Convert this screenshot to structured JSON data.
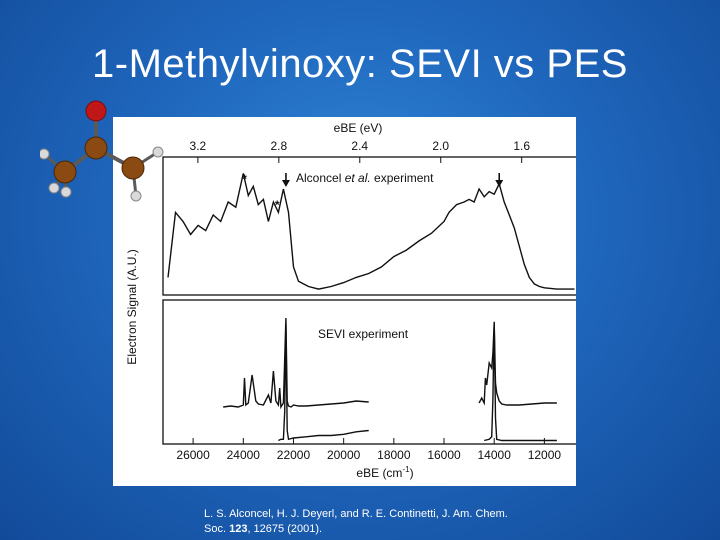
{
  "slide": {
    "title": "1-Methylvinoxy: SEVI vs PES",
    "citation_line1": "L. S. Alconcel, H. J. Deyerl, and R. E. Continetti, J. Am. Chem.",
    "citation_line2_pre": "Soc. ",
    "citation_line2_bold": "123",
    "citation_line2_post": ", 12675 (2001)."
  },
  "colors": {
    "background": "#1f67bd",
    "title": "#ffffff",
    "trace": "#111111"
  },
  "chart_data": {
    "type": "line",
    "top_axis": {
      "label": "eBE (eV)",
      "ticks": [
        "3.2",
        "2.8",
        "2.4",
        "2.0",
        "1.6"
      ],
      "tick_values": [
        3.2,
        2.8,
        2.4,
        2.0,
        1.6
      ]
    },
    "bottom_axis": {
      "label_main": "eBE (cm",
      "label_sup": "-1",
      "label_end": ")",
      "ticks": [
        "26000",
        "24000",
        "22000",
        "20000",
        "18000",
        "16000",
        "14000",
        "12000"
      ],
      "tick_values": [
        26000,
        24000,
        22000,
        20000,
        18000,
        16000,
        14000,
        12000
      ],
      "xlim": [
        27200,
        10700
      ]
    },
    "ylabel": "Electron Signal (A.U.)",
    "panels": [
      {
        "name": "Alconcel et al. experiment",
        "label_pre": "Alconcel ",
        "label_italic": "et al.",
        "label_post": " experiment",
        "markers": [
          {
            "type": "star",
            "x": 23950,
            "text": "*"
          },
          {
            "type": "star",
            "x": 22650,
            "text": "*"
          },
          {
            "type": "arrow",
            "x": 22300
          },
          {
            "type": "arrow",
            "x": 13800
          }
        ],
        "series": [
          {
            "x": [
              27000,
              26700,
              26400,
              26100,
              25800,
              25500,
              25200,
              24900,
              24600,
              24300,
              24000,
              23800,
              23600,
              23400,
              23200,
              23000,
              22800,
              22600,
              22400,
              22200,
              22000,
              21800,
              21600,
              21400,
              21000,
              20500,
              20000,
              19500,
              19000,
              18500,
              18000,
              17500,
              17000,
              16500,
              16000,
              15800,
              15500,
              15200,
              15000,
              14800,
              14600,
              14400,
              14200,
              14000,
              13800,
              13600,
              13400,
              13200,
              13000,
              12800,
              12600,
              12400,
              12200,
              12000,
              11500,
              11000,
              10800
            ],
            "y": [
              0.12,
              0.62,
              0.55,
              0.45,
              0.52,
              0.48,
              0.6,
              0.55,
              0.7,
              0.66,
              0.92,
              0.75,
              0.82,
              0.68,
              0.72,
              0.55,
              0.7,
              0.62,
              0.8,
              0.62,
              0.2,
              0.09,
              0.07,
              0.05,
              0.03,
              0.05,
              0.08,
              0.12,
              0.15,
              0.2,
              0.28,
              0.33,
              0.4,
              0.46,
              0.55,
              0.62,
              0.68,
              0.7,
              0.72,
              0.7,
              0.8,
              0.74,
              0.78,
              0.76,
              0.84,
              0.7,
              0.6,
              0.5,
              0.36,
              0.22,
              0.12,
              0.07,
              0.05,
              0.04,
              0.03,
              0.03,
              0.03
            ]
          }
        ]
      },
      {
        "name": "SEVI experiment",
        "label": "SEVI experiment",
        "series": [
          {
            "name": "upper trace",
            "x": [
              24800,
              24500,
              24200,
              24000,
              23950,
              23900,
              23800,
              23650,
              23500,
              23400,
              23200,
              23000,
              22900,
              22800,
              22700,
              22600,
              22550,
              22500,
              22400,
              22300,
              22250,
              22200,
              22100,
              22000,
              21800,
              21500,
              21000,
              20500,
              20000,
              19500,
              19000
            ],
            "y": [
              0.06,
              0.07,
              0.06,
              0.08,
              0.35,
              0.08,
              0.1,
              0.38,
              0.12,
              0.09,
              0.08,
              0.18,
              0.1,
              0.42,
              0.12,
              0.08,
              0.25,
              0.06,
              0.1,
              0.95,
              0.12,
              0.07,
              0.06,
              0.08,
              0.07,
              0.07,
              0.08,
              0.09,
              0.1,
              0.12,
              0.11
            ]
          },
          {
            "name": "lower trace",
            "x": [
              22600,
              22500,
              22400,
              22350,
              22300,
              22250,
              22200,
              22000,
              21500,
              21000,
              20500,
              20000,
              19500,
              19000
            ],
            "y": [
              0.02,
              0.03,
              0.03,
              0.25,
              0.95,
              0.1,
              0.03,
              0.04,
              0.05,
              0.06,
              0.06,
              0.07,
              0.09,
              0.1
            ]
          },
          {
            "name": "upper trace (right)",
            "x": [
              14600,
              14500,
              14400,
              14350,
              14300,
              14200,
              14100,
              14050,
              14000,
              13950,
              13900,
              13800,
              13700,
              13500,
              13000,
              12500,
              12000,
              11500
            ],
            "y": [
              0.1,
              0.15,
              0.1,
              0.35,
              0.28,
              0.5,
              0.45,
              0.6,
              0.9,
              0.3,
              0.2,
              0.12,
              0.09,
              0.08,
              0.08,
              0.09,
              0.1,
              0.1
            ]
          },
          {
            "name": "lower trace (right)",
            "x": [
              14400,
              14200,
              14100,
              14050,
              14000,
              13950,
              13900,
              13700,
              13000,
              12000,
              11500
            ],
            "y": [
              0.02,
              0.03,
              0.05,
              0.35,
              0.97,
              0.2,
              0.03,
              0.02,
              0.02,
              0.02,
              0.02
            ]
          }
        ]
      }
    ]
  }
}
